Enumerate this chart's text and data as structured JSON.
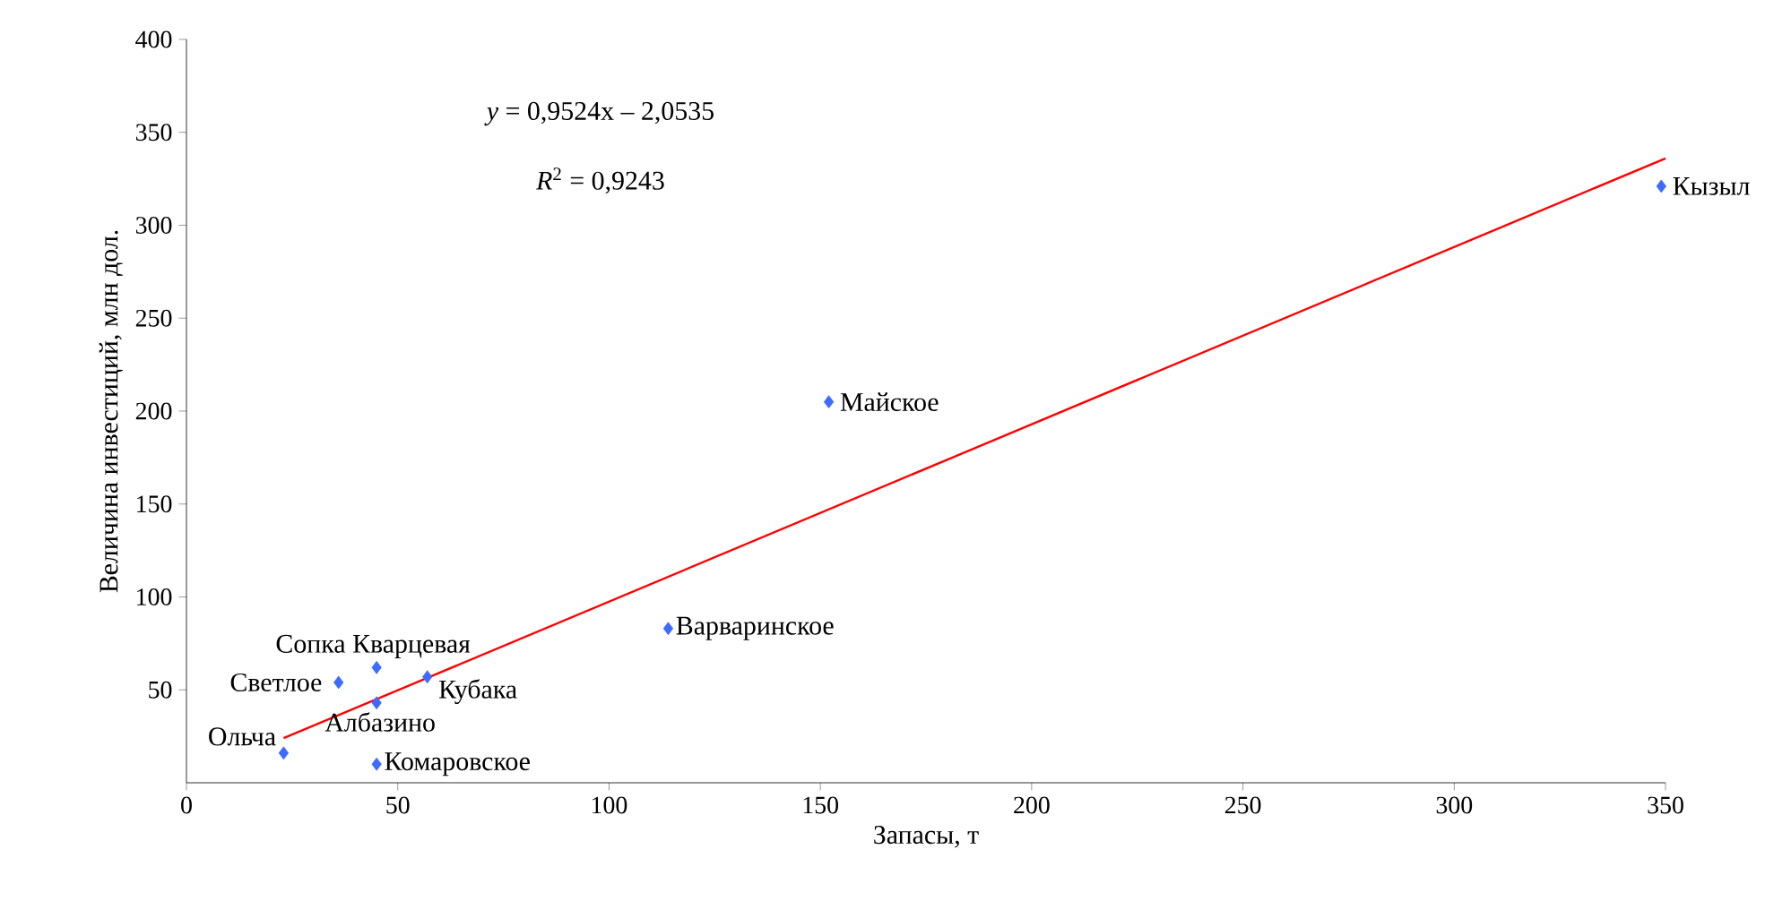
{
  "chart_data": {
    "type": "scatter",
    "xlabel": "Запасы, т",
    "ylabel": "Величина инвестиций, млн дол.",
    "xlim": [
      0,
      350
    ],
    "ylim": [
      0,
      400
    ],
    "xticks": [
      0,
      50,
      100,
      150,
      200,
      250,
      300,
      350
    ],
    "yticks": [
      50,
      100,
      150,
      200,
      250,
      300,
      350,
      400
    ],
    "series": [
      {
        "color": "#3d6bff",
        "marker": "diamond",
        "x": [
          349,
          152,
          114,
          45,
          36,
          57,
          45,
          23,
          45
        ],
        "values": [
          321,
          205,
          83,
          62,
          54,
          57,
          43,
          16,
          10
        ]
      },
      {
        "type": "line",
        "color": "#ff0000",
        "marker": "none",
        "x": [
          23,
          350
        ],
        "values": [
          24,
          336
        ]
      }
    ],
    "annotations": [
      "*y* = 0,9524x – 2,0535",
      "*R*$^{2}$ = 0,9243",
      {
        "text": "Кызыл",
        "x": 349,
        "y": 321
      },
      {
        "text": "Майское",
        "x": 152,
        "y": 205
      },
      {
        "text": "Варваринское",
        "x": 114,
        "y": 83
      },
      {
        "text": "Сопка Кварцевая",
        "x": 45,
        "y": 62
      },
      {
        "text": "Светлое",
        "x": 36,
        "y": 54
      },
      {
        "text": "Кубака",
        "x": 57,
        "y": 57
      },
      {
        "text": "Албазино",
        "x": 45,
        "y": 43
      },
      {
        "text": "Ольча",
        "x": 23,
        "y": 16
      },
      {
        "text": "Комаровское",
        "x": 45,
        "y": 10
      }
    ]
  }
}
